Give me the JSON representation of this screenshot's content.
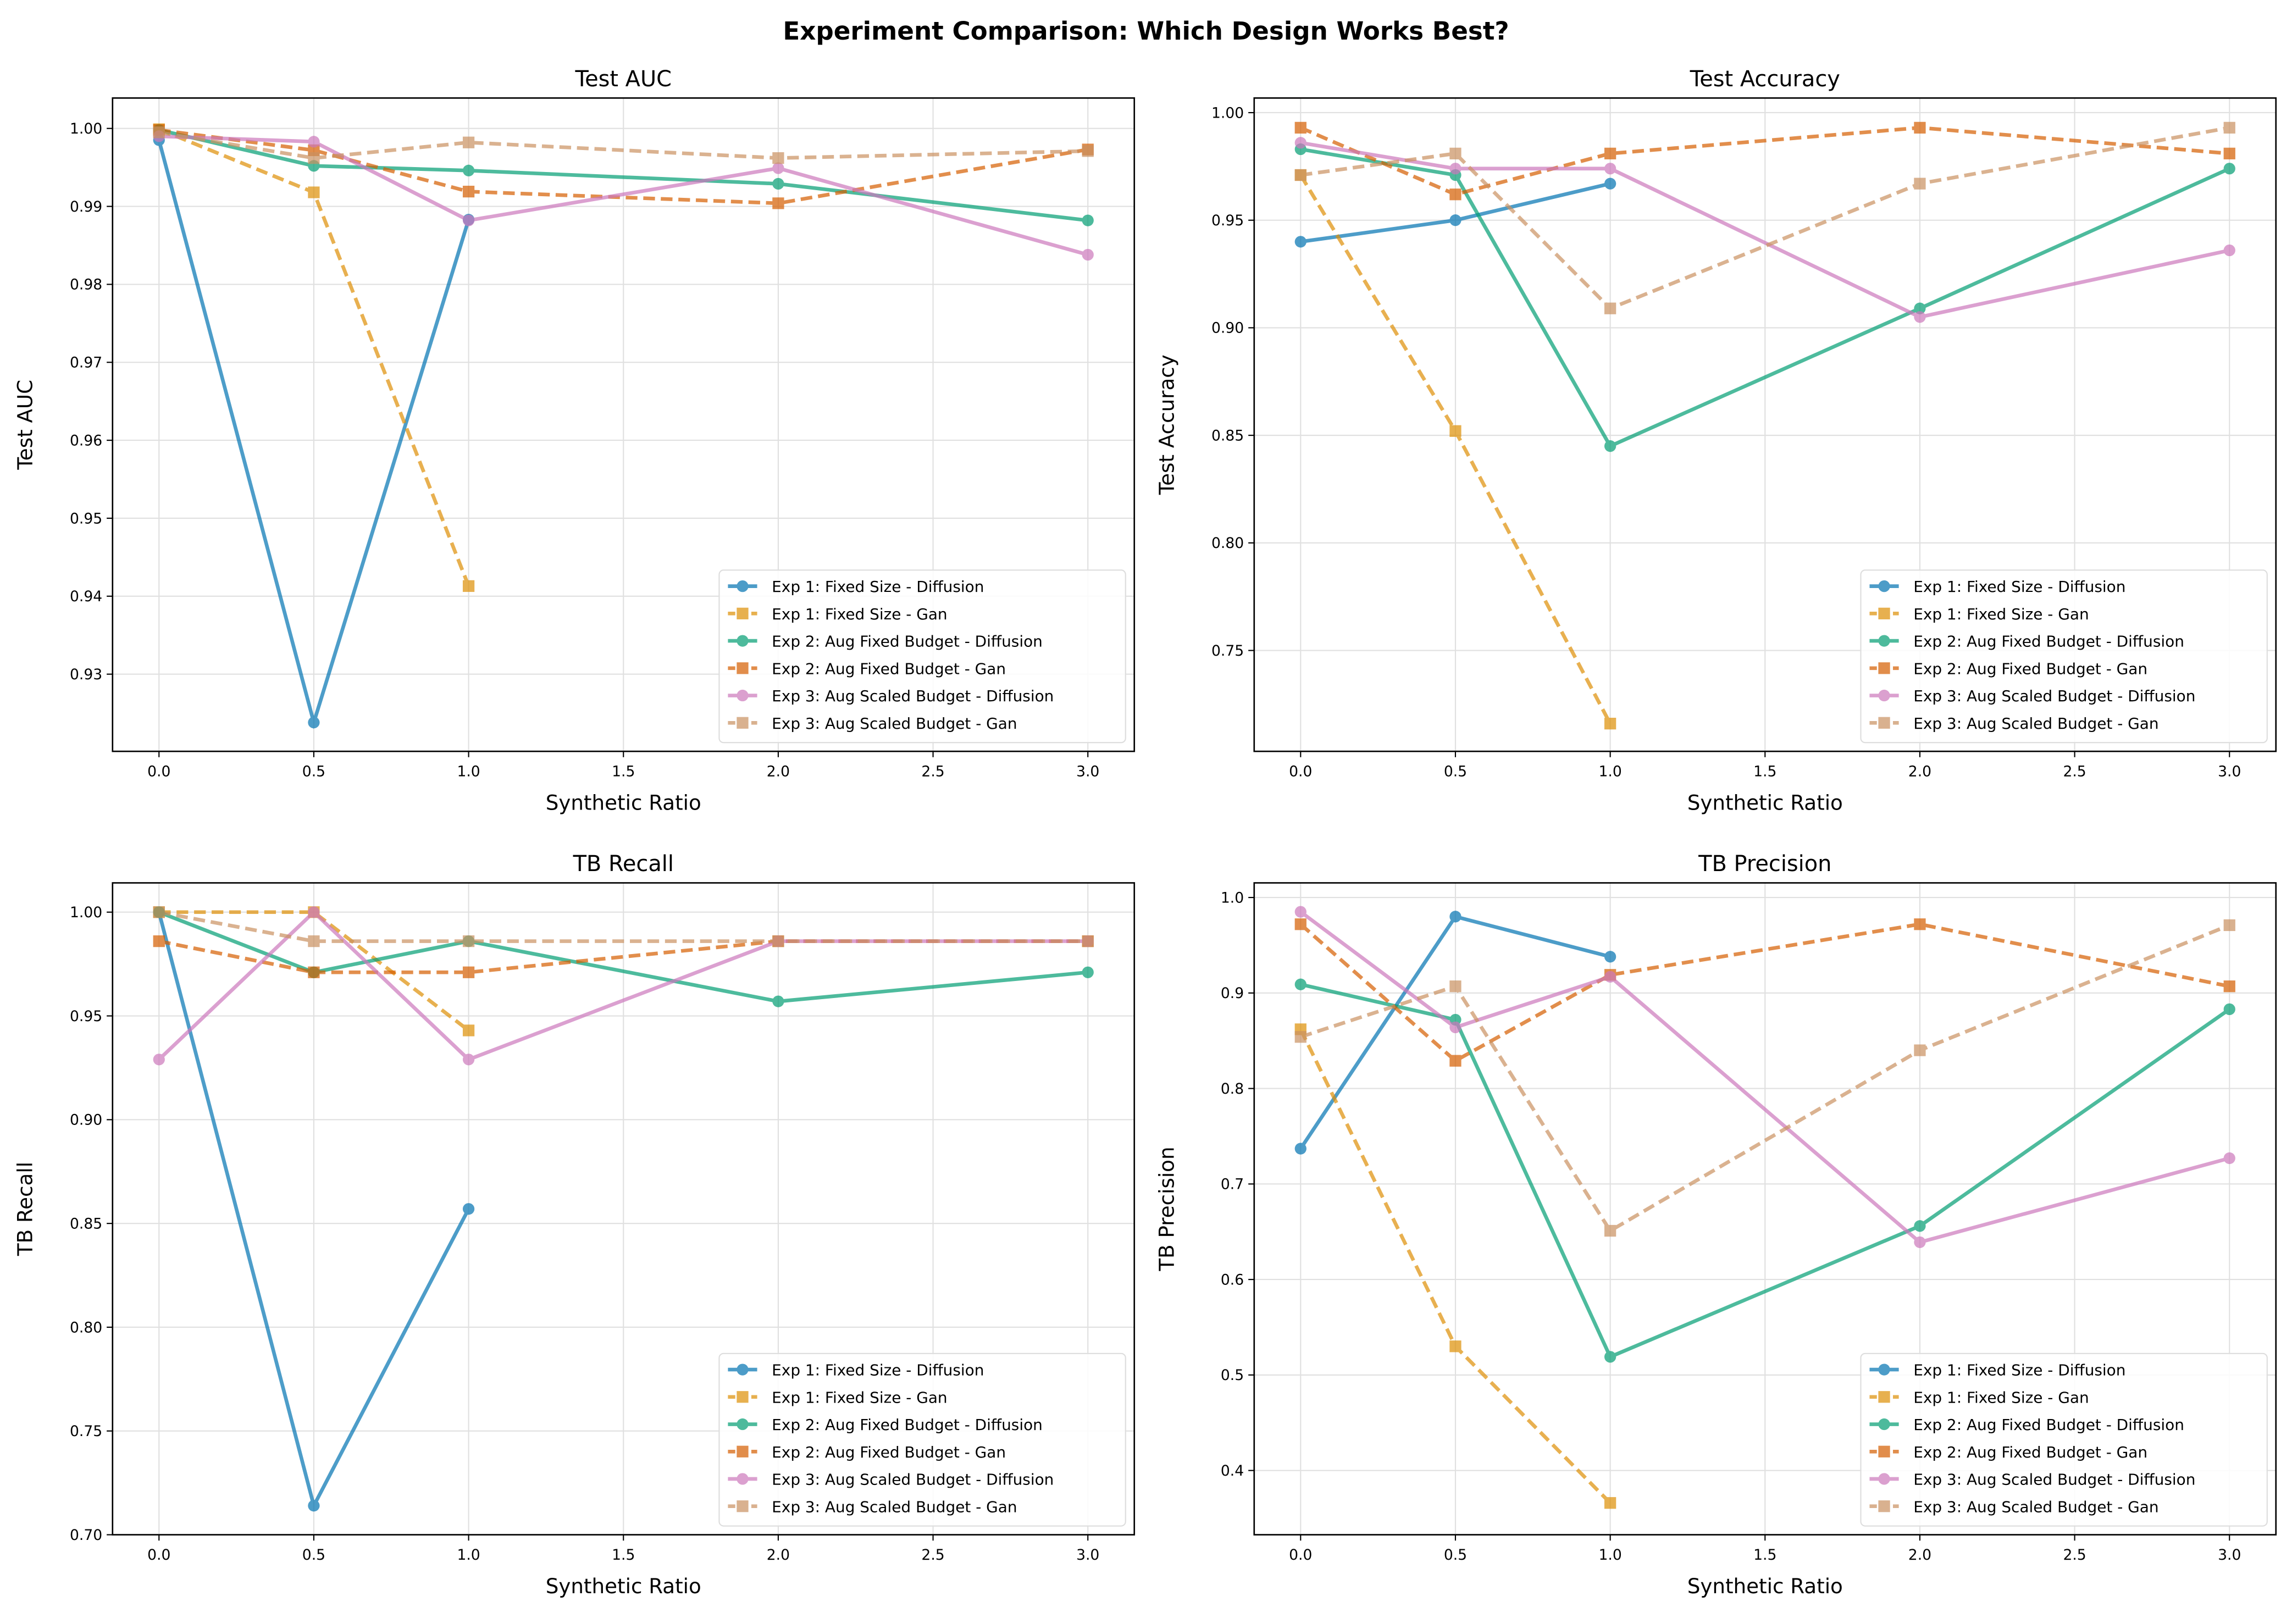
{
  "title": "Experiment Comparison: Which Design Works Best?",
  "series_styles": [
    {
      "name": "Exp 1: Fixed Size - Diffusion",
      "color": "#0173b2",
      "dash": false,
      "marker": "circle"
    },
    {
      "name": "Exp 1: Fixed Size - Gan",
      "color": "#de8f05",
      "dash": true,
      "marker": "square"
    },
    {
      "name": "Exp 2: Aug Fixed Budget - Diffusion",
      "color": "#029e73",
      "dash": false,
      "marker": "circle"
    },
    {
      "name": "Exp 2: Aug Fixed Budget - Gan",
      "color": "#d55e00",
      "dash": true,
      "marker": "square"
    },
    {
      "name": "Exp 3: Aug Scaled Budget - Diffusion",
      "color": "#cc78bc",
      "dash": false,
      "marker": "circle"
    },
    {
      "name": "Exp 3: Aug Scaled Budget - Gan",
      "color": "#ca9161",
      "dash": true,
      "marker": "square"
    }
  ],
  "chart_data": [
    {
      "type": "line",
      "title": "Test AUC",
      "xlabel": "Synthetic Ratio",
      "ylabel": "Test AUC",
      "xlim": [
        -0.15,
        3.15
      ],
      "ylim": [
        0.9201,
        1.0039
      ],
      "xticks": [
        "0.0",
        "0.5",
        "1.0",
        "1.5",
        "2.0",
        "2.5",
        "3.0"
      ],
      "yticks": [
        "0.93",
        "0.94",
        "0.95",
        "0.96",
        "0.97",
        "0.98",
        "0.99",
        "1.00"
      ],
      "grid": true,
      "legend": "lower-right",
      "series": [
        {
          "name": "Exp 1: Fixed Size - Diffusion",
          "x": [
            0,
            0.5,
            1
          ],
          "y": [
            0.9985,
            0.9238,
            0.9883
          ]
        },
        {
          "name": "Exp 1: Fixed Size - Gan",
          "x": [
            0,
            0.5,
            1
          ],
          "y": [
            0.9999,
            0.9918,
            0.9413
          ]
        },
        {
          "name": "Exp 2: Aug Fixed Budget - Diffusion",
          "x": [
            0,
            0.5,
            1,
            2,
            3
          ],
          "y": [
            0.9998,
            0.9952,
            0.9946,
            0.9929,
            0.9882
          ]
        },
        {
          "name": "Exp 2: Aug Fixed Budget - Gan",
          "x": [
            0,
            0.5,
            1,
            2,
            3
          ],
          "y": [
            0.9998,
            0.9972,
            0.9919,
            0.9904,
            0.9973
          ]
        },
        {
          "name": "Exp 3: Aug Scaled Budget - Diffusion",
          "x": [
            0,
            0.5,
            1,
            2,
            3
          ],
          "y": [
            0.999,
            0.9983,
            0.9882,
            0.9949,
            0.9838
          ]
        },
        {
          "name": "Exp 3: Aug Scaled Budget - Gan",
          "x": [
            0,
            0.5,
            1,
            2,
            3
          ],
          "y": [
            0.9995,
            0.9962,
            0.9982,
            0.9962,
            0.9971
          ]
        }
      ]
    },
    {
      "type": "line",
      "title": "Test Accuracy",
      "xlabel": "Synthetic Ratio",
      "ylabel": "Test Accuracy",
      "xlim": [
        -0.15,
        3.15
      ],
      "ylim": [
        0.7031,
        1.0068
      ],
      "xticks": [
        "0.0",
        "0.5",
        "1.0",
        "1.5",
        "2.0",
        "2.5",
        "3.0"
      ],
      "yticks": [
        "0.75",
        "0.80",
        "0.85",
        "0.90",
        "0.95",
        "1.00"
      ],
      "grid": true,
      "legend": "lower-right",
      "series": [
        {
          "name": "Exp 1: Fixed Size - Diffusion",
          "x": [
            0,
            0.5,
            1
          ],
          "y": [
            0.94,
            0.95,
            0.967
          ]
        },
        {
          "name": "Exp 1: Fixed Size - Gan",
          "x": [
            0,
            0.5,
            1
          ],
          "y": [
            0.971,
            0.852,
            0.716
          ]
        },
        {
          "name": "Exp 2: Aug Fixed Budget - Diffusion",
          "x": [
            0,
            0.5,
            1,
            2,
            3
          ],
          "y": [
            0.983,
            0.971,
            0.845,
            0.909,
            0.974
          ]
        },
        {
          "name": "Exp 2: Aug Fixed Budget - Gan",
          "x": [
            0,
            0.5,
            1,
            2,
            3
          ],
          "y": [
            0.993,
            0.962,
            0.981,
            0.993,
            0.981
          ]
        },
        {
          "name": "Exp 3: Aug Scaled Budget - Diffusion",
          "x": [
            0,
            0.5,
            1,
            2,
            3
          ],
          "y": [
            0.986,
            0.974,
            0.974,
            0.905,
            0.936
          ]
        },
        {
          "name": "Exp 3: Aug Scaled Budget - Gan",
          "x": [
            0,
            0.5,
            1,
            2,
            3
          ],
          "y": [
            0.971,
            0.981,
            0.909,
            0.967,
            0.993
          ]
        }
      ]
    },
    {
      "type": "line",
      "title": "TB Recall",
      "xlabel": "Synthetic Ratio",
      "ylabel": "TB Recall",
      "xlim": [
        -0.15,
        3.15
      ],
      "ylim": [
        0.7,
        1.0141
      ],
      "xticks": [
        "0.0",
        "0.5",
        "1.0",
        "1.5",
        "2.0",
        "2.5",
        "3.0"
      ],
      "yticks": [
        "0.70",
        "0.75",
        "0.80",
        "0.85",
        "0.90",
        "0.95",
        "1.00"
      ],
      "grid": true,
      "legend": "lower-right",
      "series": [
        {
          "name": "Exp 1: Fixed Size - Diffusion",
          "x": [
            0,
            0.5,
            1
          ],
          "y": [
            1.0,
            0.714,
            0.857
          ]
        },
        {
          "name": "Exp 1: Fixed Size - Gan",
          "x": [
            0,
            0.5,
            1
          ],
          "y": [
            1.0,
            1.0,
            0.943
          ]
        },
        {
          "name": "Exp 2: Aug Fixed Budget - Diffusion",
          "x": [
            0,
            0.5,
            1,
            2,
            3
          ],
          "y": [
            1.0,
            0.971,
            0.986,
            0.957,
            0.971
          ]
        },
        {
          "name": "Exp 2: Aug Fixed Budget - Gan",
          "x": [
            0,
            0.5,
            1,
            2,
            3
          ],
          "y": [
            0.986,
            0.971,
            0.971,
            0.986,
            0.986
          ]
        },
        {
          "name": "Exp 3: Aug Scaled Budget - Diffusion",
          "x": [
            0,
            0.5,
            1,
            2,
            3
          ],
          "y": [
            0.929,
            1.0,
            0.929,
            0.986,
            0.986
          ]
        },
        {
          "name": "Exp 3: Aug Scaled Budget - Gan",
          "x": [
            0,
            0.5,
            1,
            2,
            3
          ],
          "y": [
            1.0,
            0.986,
            0.986,
            0.986,
            0.986
          ]
        }
      ]
    },
    {
      "type": "line",
      "title": "TB Precision",
      "xlabel": "Synthetic Ratio",
      "ylabel": "TB Precision",
      "xlim": [
        -0.15,
        3.15
      ],
      "ylim": [
        0.3327,
        1.0153
      ],
      "xticks": [
        "0.0",
        "0.5",
        "1.0",
        "1.5",
        "2.0",
        "2.5",
        "3.0"
      ],
      "yticks": [
        "0.4",
        "0.5",
        "0.6",
        "0.7",
        "0.8",
        "0.9",
        "1.0"
      ],
      "grid": true,
      "legend": "lower-right",
      "series": [
        {
          "name": "Exp 1: Fixed Size - Diffusion",
          "x": [
            0,
            0.5,
            1
          ],
          "y": [
            0.737,
            0.98,
            0.938
          ]
        },
        {
          "name": "Exp 1: Fixed Size - Gan",
          "x": [
            0,
            0.5,
            1
          ],
          "y": [
            0.862,
            0.53,
            0.366
          ]
        },
        {
          "name": "Exp 2: Aug Fixed Budget - Diffusion",
          "x": [
            0,
            0.5,
            1,
            2,
            3
          ],
          "y": [
            0.909,
            0.872,
            0.519,
            0.656,
            0.883
          ]
        },
        {
          "name": "Exp 2: Aug Fixed Budget - Gan",
          "x": [
            0,
            0.5,
            1,
            2,
            3
          ],
          "y": [
            0.972,
            0.829,
            0.919,
            0.972,
            0.907
          ]
        },
        {
          "name": "Exp 3: Aug Scaled Budget - Diffusion",
          "x": [
            0,
            0.5,
            1,
            2,
            3
          ],
          "y": [
            0.985,
            0.864,
            0.917,
            0.639,
            0.727
          ]
        },
        {
          "name": "Exp 3: Aug Scaled Budget - Gan",
          "x": [
            0,
            0.5,
            1,
            2,
            3
          ],
          "y": [
            0.854,
            0.907,
            0.651,
            0.84,
            0.971
          ]
        }
      ]
    }
  ]
}
